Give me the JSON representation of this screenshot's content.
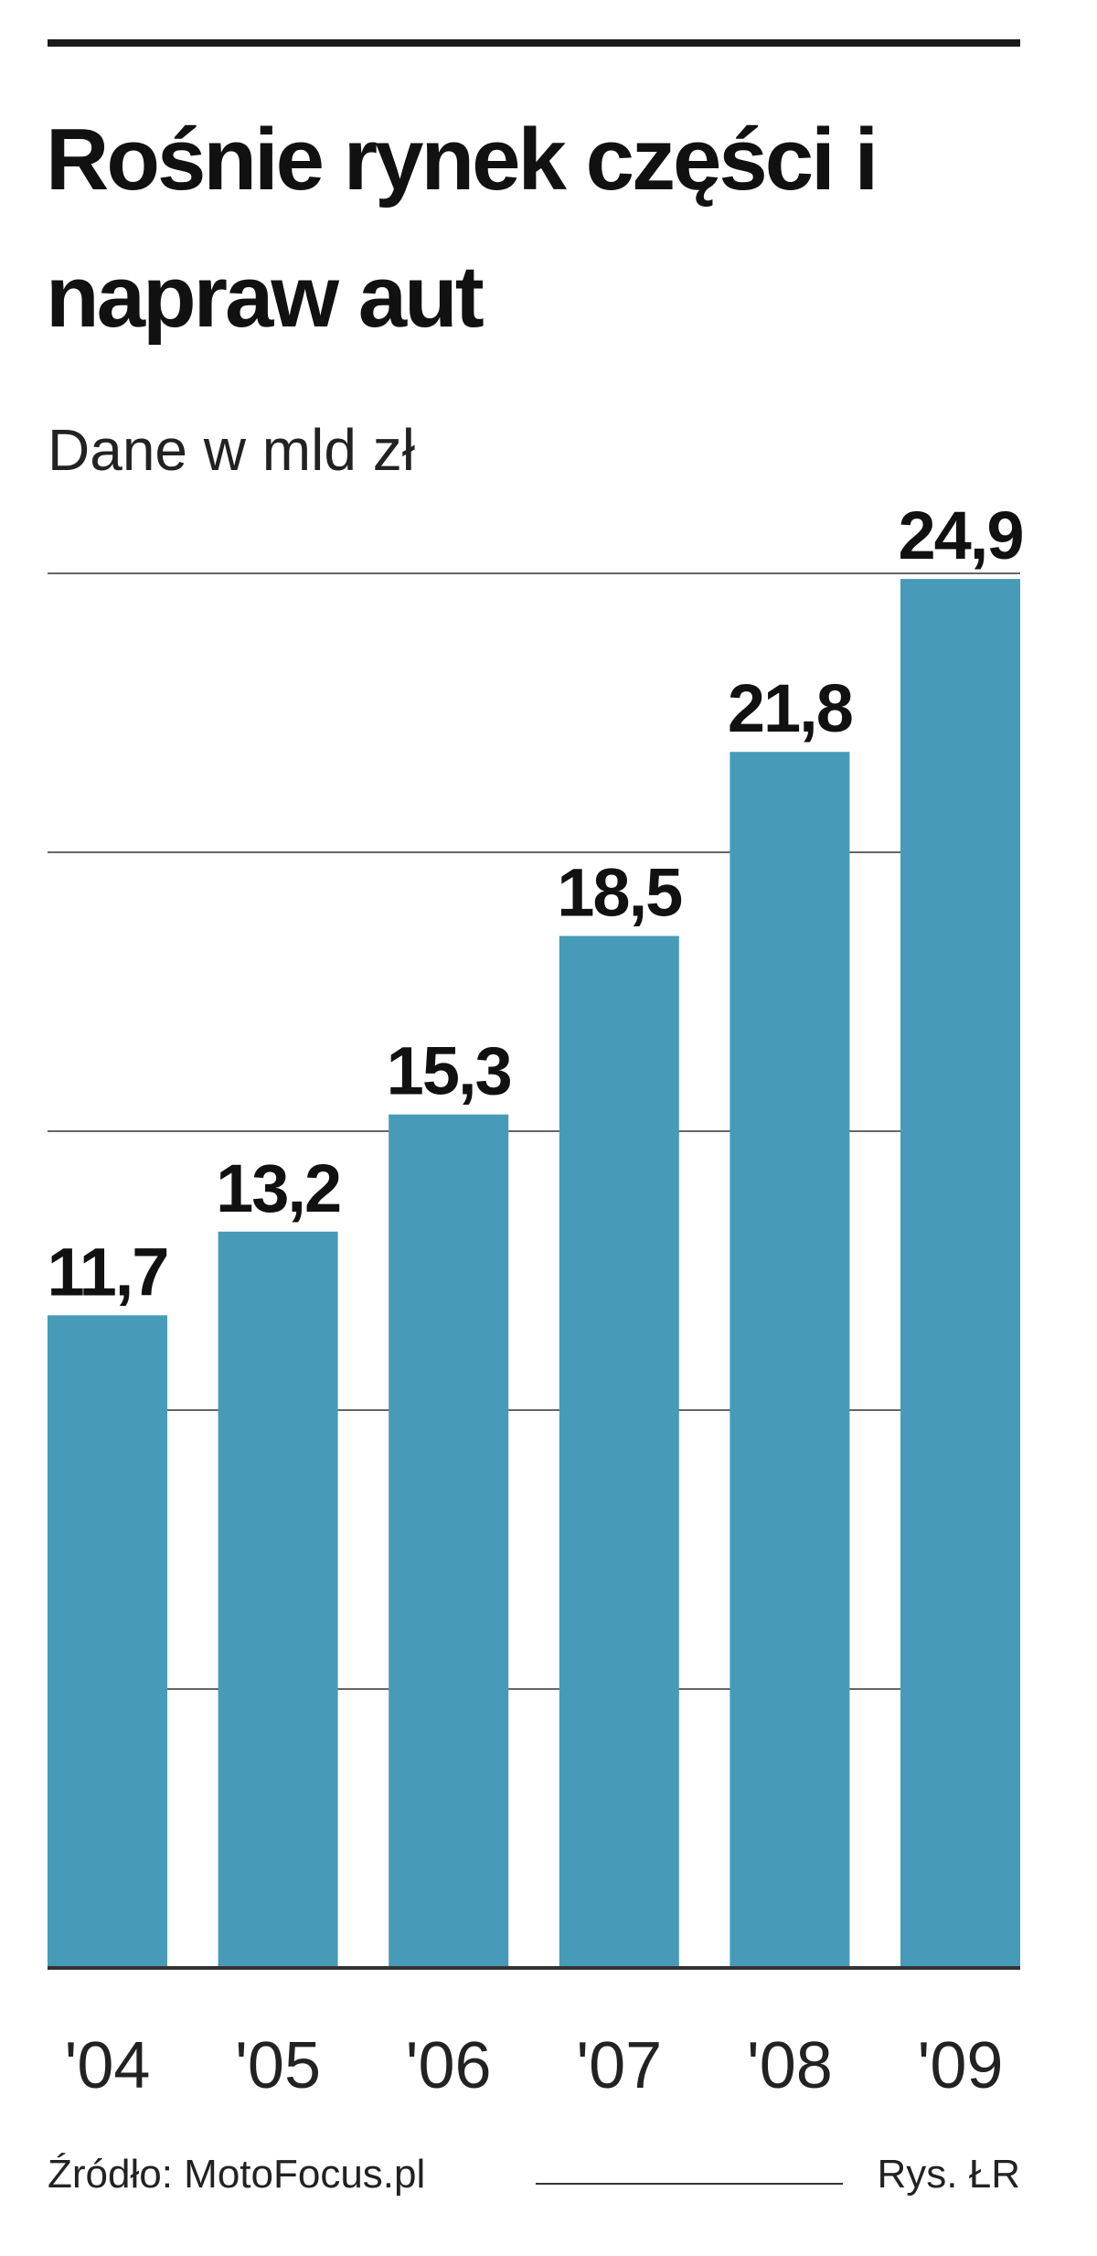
{
  "chart_data": {
    "type": "bar",
    "title": "Rośnie rynek części i napraw aut",
    "subtitle": "Dane w mld zł",
    "categories": [
      "'04",
      "'05",
      "'06",
      "'07",
      "'08",
      "'09"
    ],
    "values": [
      11.7,
      13.2,
      15.3,
      18.5,
      21.8,
      24.9
    ],
    "value_labels": [
      "11,7",
      "13,2",
      "15,3",
      "18,5",
      "21,8",
      "24,9"
    ],
    "color": "#479bb9",
    "ylim": [
      0,
      25
    ],
    "yticks": [
      0,
      5,
      10,
      15,
      20,
      25
    ],
    "grid": true,
    "source": "Źródło: MotoFocus.pl",
    "credit": "Rys. ŁR"
  }
}
